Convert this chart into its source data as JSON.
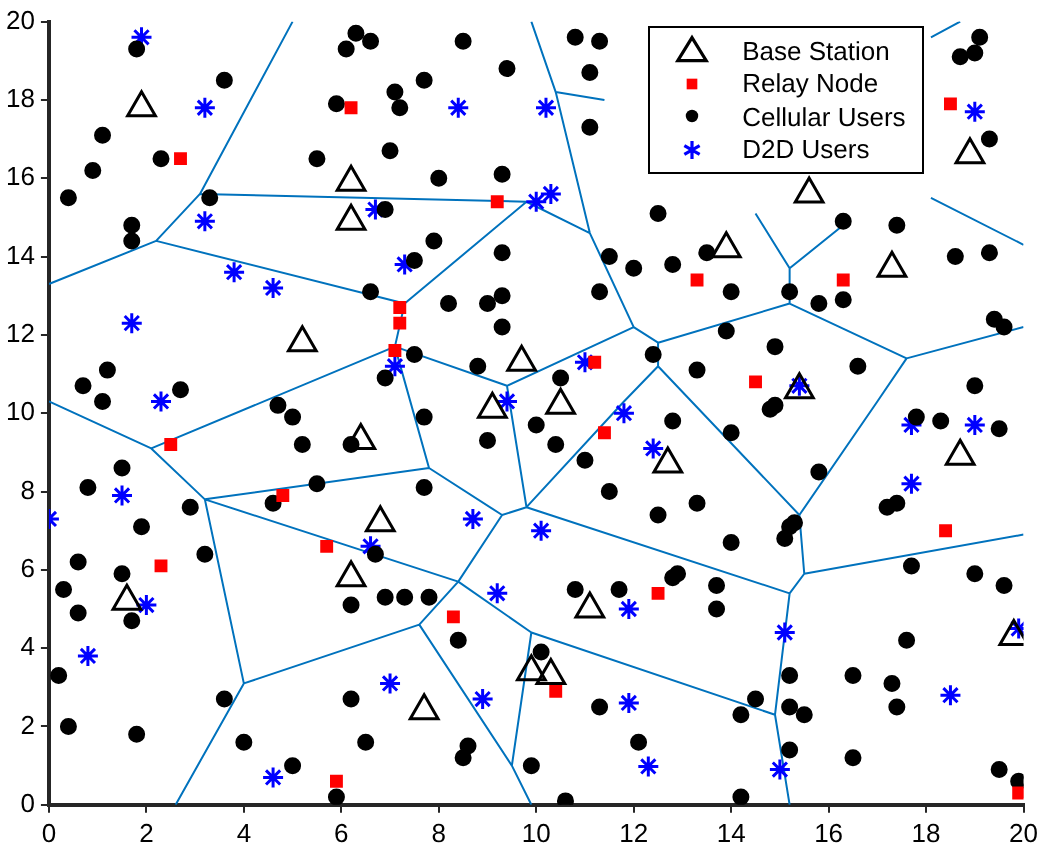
{
  "chart_data": {
    "type": "scatter",
    "xlim": [
      0,
      20
    ],
    "ylim": [
      0,
      20
    ],
    "xticks": [
      0,
      2,
      4,
      6,
      8,
      10,
      12,
      14,
      16,
      18,
      20
    ],
    "yticks": [
      0,
      2,
      4,
      6,
      8,
      10,
      12,
      14,
      16,
      18,
      20
    ],
    "grid": false,
    "legend": "top right",
    "series": [
      {
        "type": "line",
        "color": "#0072bd",
        "marker": "none",
        "x": [
          5.0,
          3.1,
          2.2,
          0,
          null,
          3.1,
          9.8,
          null,
          2.2,
          7.3,
          9.8,
          null,
          7.3,
          7.1,
          null,
          0,
          2.1,
          7.1,
          null,
          2.1,
          3.2,
          7.8,
          7.1,
          null,
          7.8,
          9.3,
          9.8,
          null,
          7.1,
          9.4,
          12.0,
          null,
          9.4,
          9.8,
          11.8,
          12.5,
          12.5,
          12.0,
          11.1,
          10.4,
          9.9,
          null,
          11.1,
          9.8,
          null,
          10.4,
          11.4,
          null,
          9.8,
          15.2,
          null,
          3.2,
          8.4,
          9.3,
          null,
          3.2,
          4.0,
          2.6,
          null,
          4.0,
          7.6,
          8.4,
          9.9,
          14.9,
          15.2,
          null,
          7.6,
          9.5,
          9.9,
          null,
          9.5,
          9.9,
          null,
          14.9,
          15.2,
          15.5,
          20,
          null,
          15.5,
          15.4,
          12.5,
          null,
          15.4,
          17.0,
          17.6,
          20,
          null,
          17.6,
          15.2,
          12.5,
          null,
          15.2,
          15.2,
          14.5,
          null,
          15.2,
          16.4,
          null,
          18.1,
          20,
          null,
          18.1,
          18.7
        ],
        "values": [
          20,
          15.6,
          14.4,
          13.3,
          null,
          15.6,
          15.4,
          null,
          14.4,
          12.8,
          15.4,
          null,
          12.8,
          11.7,
          null,
          10.3,
          9.1,
          11.7,
          null,
          9.1,
          7.8,
          8.6,
          11.7,
          null,
          8.6,
          7.4,
          7.6,
          null,
          11.7,
          10.7,
          12.2,
          null,
          10.7,
          7.6,
          10.3,
          11.2,
          11.8,
          12.2,
          14.6,
          18.2,
          20,
          null,
          14.6,
          15.4,
          null,
          18.2,
          18.0,
          null,
          7.6,
          5.4,
          null,
          7.8,
          5.7,
          7.4,
          null,
          7.8,
          3.1,
          0,
          null,
          3.1,
          4.6,
          5.7,
          4.4,
          2.3,
          0,
          null,
          4.6,
          1.0,
          0,
          null,
          1.0,
          4.4,
          null,
          2.3,
          5.4,
          5.9,
          6.9,
          null,
          5.9,
          7.4,
          11.2,
          null,
          7.4,
          10.3,
          11.4,
          12.2,
          null,
          11.4,
          12.8,
          11.8,
          null,
          12.8,
          13.7,
          15.1,
          null,
          13.7,
          14.9,
          null,
          15.5,
          14.3,
          null,
          19.6,
          20
        ]
      },
      {
        "name": "Base Station",
        "color": "#000000",
        "marker": "triangle",
        "x": [
          1.9,
          6.2,
          6.2,
          5.2,
          6.4,
          6.8,
          6.2,
          1.6,
          7.7,
          9.9,
          10.3,
          11.1,
          9.7,
          9.1,
          10.5,
          12.7,
          13.9,
          15.6,
          17.3,
          18.9,
          15.4,
          18.7,
          19.8
        ],
        "values": [
          17.8,
          15.9,
          14.9,
          11.8,
          9.3,
          7.2,
          5.8,
          5.2,
          2.4,
          3.4,
          3.3,
          5.0,
          11.3,
          10.1,
          10.2,
          8.7,
          14.2,
          15.6,
          13.7,
          16.6,
          10.6,
          8.9,
          4.3
        ]
      },
      {
        "name": "Relay Node",
        "color": "#ff0000",
        "marker": "square",
        "x": [
          2.7,
          6.2,
          9.2,
          7.2,
          7.2,
          7.1,
          18.5,
          13.3,
          16.3,
          11.2,
          14.5,
          2.5,
          4.8,
          5.7,
          2.3,
          8.3,
          5.9,
          11.4,
          12.5,
          10.4,
          18.4,
          19.9
        ],
        "values": [
          16.5,
          17.8,
          15.4,
          12.7,
          12.3,
          11.6,
          17.9,
          13.4,
          13.4,
          11.3,
          10.8,
          9.2,
          7.9,
          6.6,
          6.1,
          4.8,
          0.6,
          9.5,
          5.4,
          2.9,
          7.0,
          0.3
        ]
      },
      {
        "name": "Cellular Users",
        "color": "#000000",
        "marker": "circle",
        "x": [
          1.8,
          6.3,
          6.6,
          6.1,
          8.5,
          9.4,
          3.6,
          5.9,
          7.1,
          7.2,
          7.7,
          1.1,
          0.9,
          2.3,
          0.4,
          1.7,
          1.7,
          3.3,
          5.5,
          7.0,
          8.0,
          9.3,
          6.9,
          7.9,
          7.5,
          9.3,
          6.6,
          8.2,
          9.0,
          9.3,
          9.3,
          7.5,
          8.8,
          6.9,
          0.7,
          1.2,
          1.1,
          2.7,
          4.7,
          5.0,
          7.7,
          10.8,
          11.3,
          11.1,
          11.1,
          19.1,
          18.7,
          19.0,
          19.3,
          11.5,
          12.0,
          12.8,
          13.5,
          11.3,
          14.0,
          15.2,
          15.8,
          16.3,
          18.6,
          19.3,
          19.4,
          19.6,
          13.9,
          12.4,
          14.9,
          13.3,
          16.6,
          19.0,
          14.9,
          10.5,
          12.5,
          17.4,
          16.3,
          10.0,
          9.0,
          6.2,
          5.2,
          1.5,
          0.8,
          5.5,
          7.7,
          4.6,
          2.9,
          1.9,
          3.2,
          0.6,
          1.5,
          0.3,
          0.6,
          1.7,
          6.7,
          6.9,
          7.3,
          7.8,
          6.2,
          8.4,
          10.1,
          0.2,
          3.6,
          6.2,
          0.4,
          1.8,
          4.0,
          6.5,
          8.6,
          8.5,
          5.0,
          9.9,
          5.9,
          10.4,
          11.0,
          12.8,
          14.8,
          14.0,
          11.5,
          12.5,
          13.3,
          14.0,
          15.8,
          17.8,
          18.3,
          19.5,
          17.2,
          17.4,
          15.2,
          15.3,
          15.1,
          17.7,
          19.0,
          19.6,
          10.8,
          11.7,
          12.9,
          12.8,
          13.7,
          13.7,
          11.3,
          12.1,
          10.6,
          14.2,
          14.2,
          14.5,
          15.2,
          15.5,
          15.2,
          15.2,
          16.5,
          16.5,
          17.3,
          17.4,
          17.6,
          19.5,
          19.9
        ],
        "values": [
          19.3,
          19.7,
          19.5,
          19.3,
          19.5,
          18.8,
          18.5,
          17.9,
          18.2,
          17.8,
          18.5,
          17.1,
          16.2,
          16.5,
          15.5,
          14.8,
          14.4,
          15.5,
          16.5,
          16.7,
          16.0,
          16.1,
          15.2,
          14.4,
          13.9,
          14.1,
          13.1,
          12.8,
          12.8,
          13.0,
          12.2,
          11.5,
          11.2,
          10.9,
          10.7,
          11.1,
          10.3,
          10.6,
          10.2,
          9.9,
          9.9,
          19.6,
          19.5,
          18.7,
          17.3,
          19.6,
          19.1,
          19.2,
          17.0,
          14.0,
          13.7,
          13.8,
          14.1,
          13.1,
          13.1,
          13.1,
          12.8,
          12.9,
          14.0,
          14.1,
          12.4,
          12.2,
          12.1,
          11.5,
          11.7,
          11.1,
          11.2,
          10.7,
          10.2,
          10.9,
          15.1,
          14.8,
          14.9,
          9.7,
          9.3,
          9.2,
          9.2,
          8.6,
          8.1,
          8.2,
          8.1,
          7.7,
          7.6,
          7.1,
          6.4,
          6.2,
          5.9,
          5.5,
          4.9,
          4.7,
          6.4,
          5.3,
          5.3,
          5.3,
          5.1,
          4.2,
          3.9,
          3.3,
          2.7,
          2.7,
          2.0,
          1.8,
          1.6,
          1.6,
          1.5,
          1.2,
          1.0,
          1.0,
          0.2,
          9.2,
          8.8,
          9.8,
          10.1,
          9.5,
          8.0,
          7.4,
          7.7,
          6.7,
          8.5,
          9.9,
          9.8,
          9.6,
          7.6,
          7.7,
          7.1,
          7.2,
          6.8,
          6.1,
          5.9,
          5.6,
          5.5,
          5.5,
          5.9,
          5.8,
          5.6,
          5.0,
          2.5,
          1.6,
          0.1,
          0.2,
          2.3,
          2.7,
          2.5,
          2.3,
          3.3,
          1.4,
          1.2,
          3.3,
          3.1,
          2.5,
          4.2,
          0.9,
          0.6
        ]
      },
      {
        "name": "D2D Users",
        "color": "#0000ff",
        "marker": "cross",
        "x": [
          1.9,
          3.2,
          8.4,
          10.2,
          3.2,
          6.7,
          10.0,
          3.8,
          4.6,
          7.3,
          1.7,
          2.3,
          7.1,
          9.4,
          10.3,
          11.0,
          15.4,
          19.0,
          11.8,
          12.4,
          0.0,
          1.5,
          2.0,
          0.8,
          6.6,
          8.7,
          10.1,
          9.2,
          7.0,
          8.9,
          4.6,
          11.9,
          12.3,
          15.1,
          15.0,
          11.9,
          17.7,
          18.5,
          19.9,
          19.0,
          17.7
        ],
        "values": [
          19.6,
          17.8,
          17.8,
          17.8,
          14.9,
          15.2,
          15.4,
          13.6,
          13.2,
          13.8,
          12.3,
          10.3,
          11.2,
          10.3,
          15.6,
          11.3,
          10.7,
          17.7,
          10.0,
          9.1,
          7.3,
          7.9,
          5.1,
          3.8,
          6.6,
          7.3,
          7.0,
          5.4,
          3.1,
          2.7,
          0.7,
          5.0,
          0.98,
          4.4,
          0.9,
          2.6,
          9.7,
          2.8,
          4.5,
          9.7,
          8.2
        ]
      }
    ]
  }
}
